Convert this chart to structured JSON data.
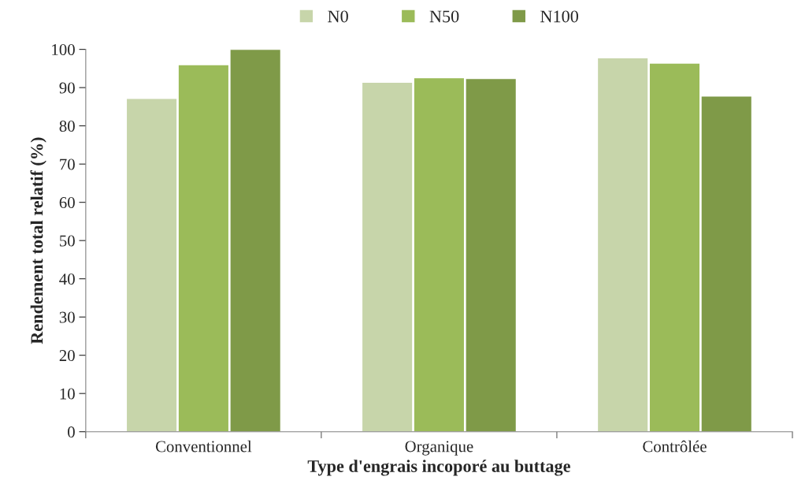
{
  "chart_data": {
    "type": "bar",
    "xlabel": "Type d'engrais incoporé au buttage",
    "ylabel": "Rendement total relatif (%)",
    "categories": [
      "Conventionnel",
      "Organique",
      "Contrôlée"
    ],
    "series": [
      {
        "name": "N0",
        "color": "#c7d5aa",
        "values": [
          87.2,
          91.4,
          97.8
        ]
      },
      {
        "name": "N50",
        "color": "#9bbb59",
        "values": [
          96.0,
          92.6,
          96.4
        ]
      },
      {
        "name": "N100",
        "color": "#7f9a48",
        "values": [
          100.0,
          92.4,
          87.8
        ]
      }
    ],
    "ylim": [
      0,
      100
    ],
    "yticks": [
      0,
      10,
      20,
      30,
      40,
      50,
      60,
      70,
      80,
      90,
      100
    ],
    "grid": false,
    "legend": "top"
  }
}
